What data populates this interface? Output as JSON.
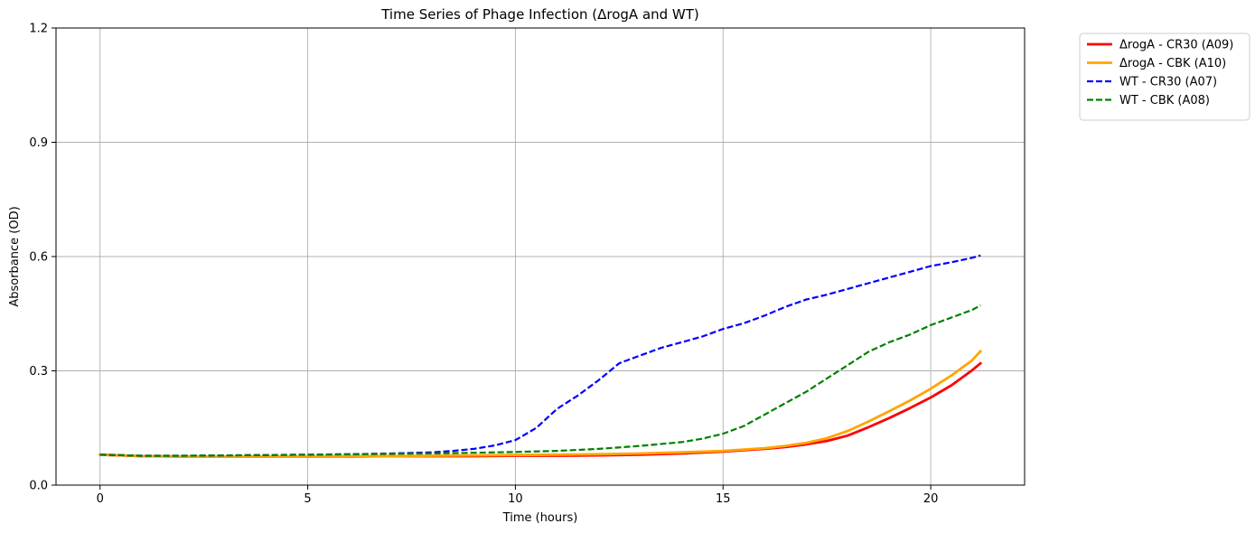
{
  "chart_data": {
    "type": "line",
    "title": "Time Series of Phage Infection (ΔrogA and WT)",
    "xlabel": "Time (hours)",
    "ylabel": "Absorbance (OD)",
    "xlim": [
      -1.06,
      22.26
    ],
    "ylim": [
      0.0,
      1.2
    ],
    "xticks": [
      0,
      5,
      10,
      15,
      20
    ],
    "xtick_labels": [
      "0",
      "5",
      "10",
      "15",
      "20"
    ],
    "yticks": [
      0.0,
      0.3,
      0.6,
      0.9,
      1.2
    ],
    "ytick_labels": [
      "0.0",
      "0.3",
      "0.6",
      "0.9",
      "1.2"
    ],
    "grid": true,
    "legend_position": "outside-top-right",
    "series": [
      {
        "name": "ΔrogA - CR30 (A09)",
        "color": "#ff0000",
        "linestyle": "solid",
        "x": [
          0,
          1,
          2,
          3,
          4,
          5,
          6,
          7,
          8,
          9,
          10,
          11,
          12,
          13,
          14,
          15,
          16,
          16.5,
          17,
          17.5,
          18,
          18.5,
          19,
          19.5,
          20,
          20.5,
          21,
          21.2
        ],
        "y": [
          0.08,
          0.076,
          0.075,
          0.075,
          0.075,
          0.075,
          0.075,
          0.076,
          0.076,
          0.076,
          0.077,
          0.077,
          0.078,
          0.08,
          0.083,
          0.088,
          0.095,
          0.1,
          0.107,
          0.116,
          0.13,
          0.152,
          0.176,
          0.202,
          0.23,
          0.262,
          0.302,
          0.32
        ]
      },
      {
        "name": "ΔrogA - CBK (A10)",
        "color": "#ffa500",
        "linestyle": "solid",
        "x": [
          0,
          1,
          2,
          3,
          4,
          5,
          6,
          7,
          8,
          9,
          10,
          11,
          12,
          13,
          14,
          15,
          16,
          16.5,
          17,
          17.5,
          18,
          18.5,
          19,
          19.5,
          20,
          20.5,
          21,
          21.2
        ],
        "y": [
          0.08,
          0.076,
          0.075,
          0.075,
          0.075,
          0.075,
          0.076,
          0.076,
          0.077,
          0.078,
          0.079,
          0.08,
          0.081,
          0.083,
          0.086,
          0.09,
          0.097,
          0.103,
          0.111,
          0.123,
          0.142,
          0.167,
          0.194,
          0.222,
          0.253,
          0.288,
          0.328,
          0.352
        ]
      },
      {
        "name": "WT - CR30 (A07)",
        "color": "#0000ff",
        "linestyle": "dashed",
        "x": [
          0,
          1,
          2,
          3,
          4,
          5,
          6,
          7,
          8,
          8.5,
          9,
          9.5,
          10,
          10.5,
          11,
          11.5,
          12,
          12.5,
          13,
          13.5,
          14,
          14.5,
          15,
          15.5,
          16,
          16.5,
          17,
          17.5,
          18,
          18.5,
          19,
          19.5,
          20,
          20.5,
          21,
          21.2
        ],
        "y": [
          0.08,
          0.077,
          0.077,
          0.078,
          0.079,
          0.08,
          0.081,
          0.083,
          0.086,
          0.09,
          0.095,
          0.104,
          0.118,
          0.15,
          0.2,
          0.235,
          0.275,
          0.32,
          0.34,
          0.36,
          0.375,
          0.39,
          0.41,
          0.425,
          0.445,
          0.468,
          0.487,
          0.5,
          0.515,
          0.53,
          0.545,
          0.56,
          0.575,
          0.585,
          0.597,
          0.603
        ]
      },
      {
        "name": "WT - CBK (A08)",
        "color": "#008000",
        "linestyle": "dashed",
        "x": [
          0,
          1,
          2,
          3,
          4,
          5,
          6,
          7,
          8,
          9,
          10,
          11,
          12,
          13,
          14,
          14.5,
          15,
          15.5,
          16,
          16.5,
          17,
          17.5,
          18,
          18.5,
          19,
          19.5,
          20,
          20.5,
          21,
          21.2
        ],
        "y": [
          0.08,
          0.077,
          0.077,
          0.078,
          0.079,
          0.08,
          0.081,
          0.082,
          0.083,
          0.085,
          0.087,
          0.09,
          0.095,
          0.103,
          0.113,
          0.122,
          0.135,
          0.155,
          0.185,
          0.215,
          0.245,
          0.28,
          0.315,
          0.35,
          0.375,
          0.395,
          0.42,
          0.44,
          0.46,
          0.472
        ]
      }
    ]
  }
}
